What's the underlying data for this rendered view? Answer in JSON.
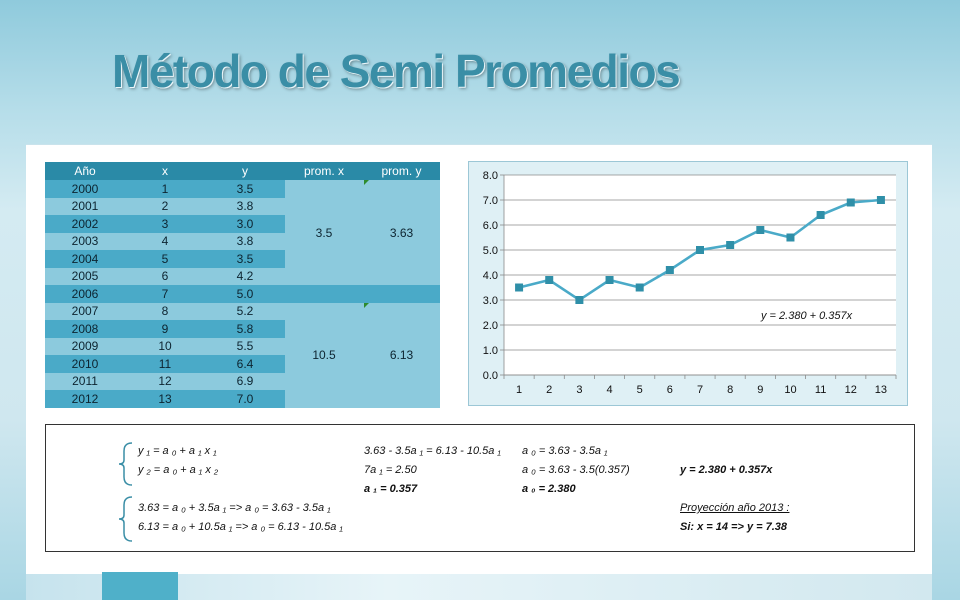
{
  "slide": {
    "title": "Método de Semi Promedios"
  },
  "table": {
    "headers": [
      "Año",
      "x",
      "y",
      "prom. x",
      "prom. y"
    ],
    "rows": [
      [
        "2000",
        "1",
        "3.5"
      ],
      [
        "2001",
        "2",
        "3.8"
      ],
      [
        "2002",
        "3",
        "3.0"
      ],
      [
        "2003",
        "4",
        "3.8"
      ],
      [
        "2004",
        "5",
        "3.5"
      ],
      [
        "2005",
        "6",
        "4.2"
      ],
      [
        "2006",
        "7",
        "5.0"
      ],
      [
        "2007",
        "8",
        "5.2"
      ],
      [
        "2008",
        "9",
        "5.8"
      ],
      [
        "2009",
        "10",
        "5.5"
      ],
      [
        "2010",
        "11",
        "6.4"
      ],
      [
        "2011",
        "12",
        "6.9"
      ],
      [
        "2012",
        "13",
        "7.0"
      ]
    ],
    "group1": {
      "prom_x": "3.5",
      "prom_y": "3.63"
    },
    "group2": {
      "prom_x": "10.5",
      "prom_y": "6.13"
    }
  },
  "chart_data": {
    "type": "line",
    "x": [
      1,
      2,
      3,
      4,
      5,
      6,
      7,
      8,
      9,
      10,
      11,
      12,
      13
    ],
    "series": [
      {
        "values": [
          3.5,
          3.8,
          3.0,
          3.8,
          3.5,
          4.2,
          5.0,
          5.2,
          5.8,
          5.5,
          6.4,
          6.9,
          7.0
        ]
      }
    ],
    "xticks": [
      "1",
      "2",
      "3",
      "4",
      "5",
      "6",
      "7",
      "8",
      "9",
      "10",
      "11",
      "12",
      "13"
    ],
    "yticks": [
      "0.0",
      "1.0",
      "2.0",
      "3.0",
      "4.0",
      "5.0",
      "6.0",
      "7.0",
      "8.0"
    ],
    "ylim": [
      0,
      8
    ],
    "grid": true,
    "annotation": "y = 2.380 + 0.357x",
    "line_color": "#4aaac8",
    "marker_color": "#2f8fa8"
  },
  "equations": {
    "sys1_line1": "y ₁ = a ₀ + a ₁ x ₁",
    "sys1_line2": "y ₂ = a ₀ + a ₁ x ₂",
    "sys2_line1": "3.63 = a ₀ + 3.5a ₁  =>  a ₀ = 3.63 - 3.5a ₁",
    "sys2_line2": "6.13 = a ₀ + 10.5a ₁  =>  a ₀ = 6.13 - 10.5a ₁",
    "solve_line1": "3.63 - 3.5a ₁ = 6.13 - 10.5a ₁",
    "solve_line2": "7a ₁ = 2.50",
    "solve_result": "a ₁ = 0.357",
    "a0_line1": "a ₀ = 3.63 - 3.5a ₁",
    "a0_line2": "a ₀ = 3.63 - 3.5(0.357)",
    "a0_result": "a ₀ = 2.380",
    "final_equation": "y = 2.380 + 0.357x",
    "projection_title": "Proyección año 2013 :",
    "projection_value": "Si: x = 14  =>  y = 7.38"
  }
}
